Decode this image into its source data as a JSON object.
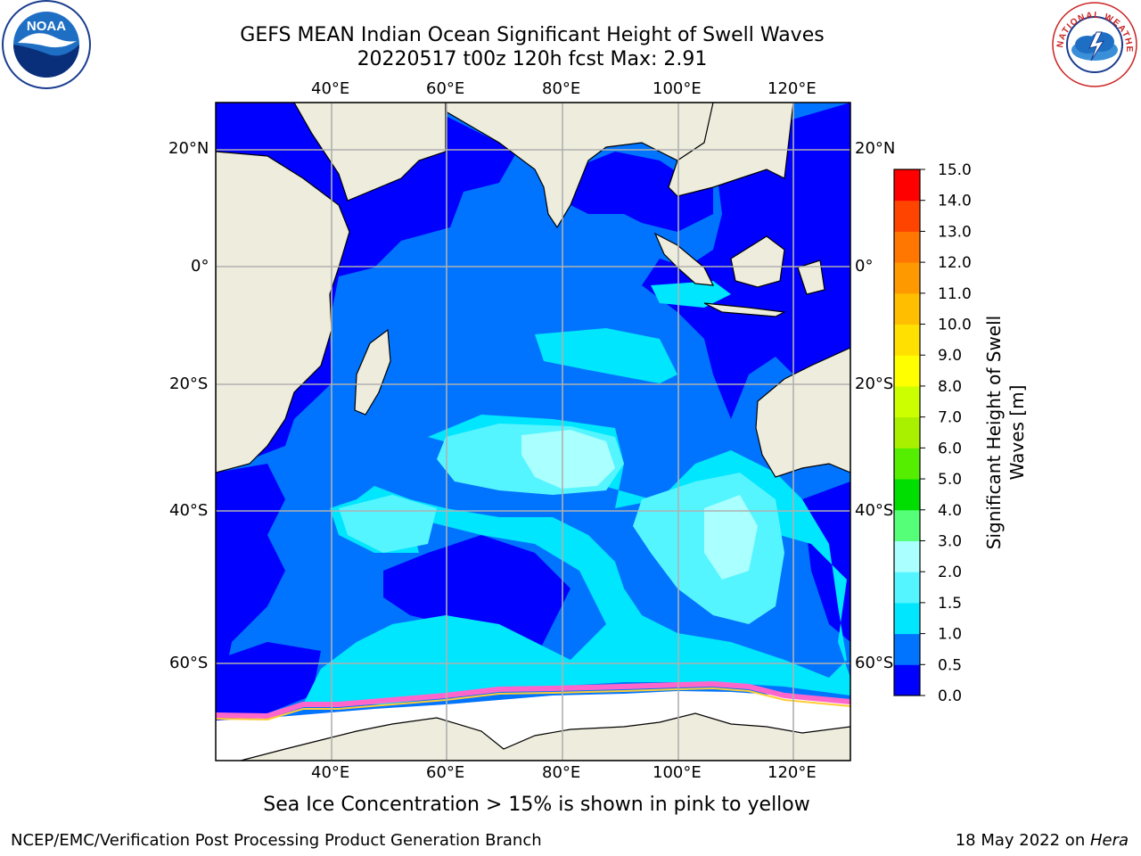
{
  "title": {
    "line1": "GEFS MEAN Indian Ocean Significant Height of Swell Waves",
    "line2": "20220517 t00z 120h fcst   Max: 2.91"
  },
  "map": {
    "lon_labels": [
      "40°E",
      "60°E",
      "80°E",
      "100°E",
      "120°E"
    ],
    "lat_labels": [
      "20°N",
      "0°",
      "20°S",
      "40°S",
      "60°S"
    ],
    "lon_range": [
      20,
      130
    ],
    "lat_range": [
      -72,
      28
    ],
    "colors": {
      "land": "#eeecdc",
      "ice": "#ffffff",
      "ice_edge": "#ff66cc",
      "grid": "#b0b0b0"
    }
  },
  "colorbar": {
    "label": "Significant Height of Swell Waves [m]",
    "ticks": [
      "0.0",
      "0.5",
      "1.0",
      "1.5",
      "2.0",
      "3.0",
      "4.0",
      "5.0",
      "6.0",
      "7.0",
      "8.0",
      "9.0",
      "10.0",
      "11.0",
      "12.0",
      "13.0",
      "14.0",
      "15.0"
    ],
    "colors": [
      "#0000ff",
      "#0074ff",
      "#00e6ff",
      "#55f5ff",
      "#aaffff",
      "#55ff77",
      "#00dd00",
      "#55ee00",
      "#a8f000",
      "#ccff00",
      "#ffff00",
      "#ffe000",
      "#ffbf00",
      "#ff9900",
      "#ff7700",
      "#ff4400",
      "#ff0000"
    ]
  },
  "logos": {
    "noaa": "NOAA",
    "nws": "NATIONAL WEATHER SERVICE"
  },
  "footer": {
    "note": "Sea Ice Concentration > 15% is shown in pink to yellow",
    "left": "NCEP/EMC/Verification Post Processing Product Generation Branch",
    "right_prefix": "18 May 2022 on ",
    "right_host": "Hera"
  }
}
